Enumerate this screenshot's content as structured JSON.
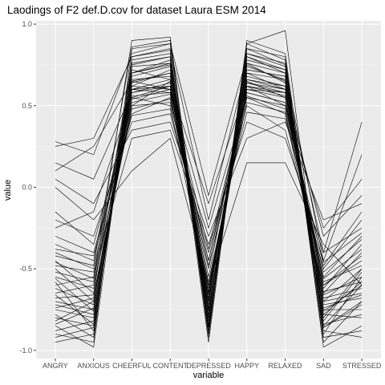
{
  "chart_data": {
    "type": "line",
    "title": "Laodings of F2 def.D.cov for dataset Laura ESM 2014",
    "xlabel": "variable",
    "ylabel": "value",
    "categories": [
      "ANGRY",
      "ANXIOUS",
      "CHEERFUL",
      "CONTENT",
      "DEPRESSED",
      "HAPPY",
      "RELAXED",
      "SAD",
      "STRESSED"
    ],
    "yticks": [
      -1.0,
      -0.5,
      0.0,
      0.5,
      1.0
    ],
    "ytick_labels": [
      "-1.0",
      "-0.5",
      "0.0",
      "0.5",
      "1.0"
    ],
    "ylim": [
      -1.05,
      1.02
    ],
    "grid": true,
    "legend": "none",
    "series": [
      {
        "values": [
          -0.55,
          -0.62,
          0.55,
          0.62,
          -0.7,
          0.65,
          0.55,
          -0.6,
          -0.45
        ]
      },
      {
        "values": [
          -0.8,
          -0.85,
          0.7,
          0.75,
          -0.8,
          0.8,
          0.7,
          -0.9,
          -0.55
        ]
      },
      {
        "values": [
          -0.4,
          -0.5,
          0.6,
          0.58,
          -0.45,
          0.62,
          0.5,
          -0.55,
          -0.3
        ]
      },
      {
        "values": [
          -0.9,
          -0.95,
          0.85,
          0.88,
          -0.9,
          0.85,
          0.75,
          -0.95,
          -0.7
        ]
      },
      {
        "values": [
          0.25,
          0.3,
          0.8,
          0.85,
          -0.2,
          0.75,
          0.65,
          -0.4,
          0.4
        ]
      },
      {
        "values": [
          -0.7,
          -0.75,
          0.65,
          0.7,
          -0.75,
          0.7,
          0.6,
          -0.8,
          -0.5
        ]
      },
      {
        "values": [
          -0.3,
          -0.4,
          0.45,
          0.55,
          -0.5,
          0.6,
          0.55,
          -0.7,
          -0.65
        ]
      },
      {
        "values": [
          -0.85,
          -0.98,
          0.75,
          0.8,
          -0.95,
          0.85,
          0.8,
          -0.98,
          -0.85
        ]
      },
      {
        "values": [
          0.05,
          -0.1,
          0.35,
          0.4,
          -0.3,
          0.3,
          0.4,
          -0.2,
          -0.1
        ]
      },
      {
        "values": [
          -0.6,
          -0.55,
          0.9,
          0.92,
          -0.85,
          0.88,
          0.96,
          -0.85,
          -0.6
        ]
      },
      {
        "values": [
          -0.5,
          -0.7,
          0.5,
          0.65,
          -0.6,
          0.55,
          0.45,
          -0.65,
          -0.4
        ]
      },
      {
        "values": [
          -0.75,
          -0.8,
          0.6,
          0.62,
          -0.7,
          0.72,
          0.68,
          -0.75,
          -0.75
        ]
      },
      {
        "values": [
          -0.2,
          -0.3,
          0.4,
          0.45,
          -0.4,
          0.5,
          0.35,
          -0.5,
          -0.2
        ]
      },
      {
        "values": [
          -0.95,
          -0.9,
          0.7,
          0.78,
          -0.88,
          0.78,
          0.72,
          -0.88,
          -0.92
        ]
      },
      {
        "values": [
          -0.65,
          -0.6,
          0.55,
          0.5,
          -0.65,
          0.58,
          0.52,
          -0.62,
          -0.35
        ]
      },
      {
        "values": [
          0.15,
          0.05,
          0.58,
          0.62,
          -0.1,
          0.62,
          0.58,
          -0.3,
          -0.05
        ]
      },
      {
        "values": [
          -0.45,
          -0.65,
          0.78,
          0.82,
          -0.8,
          0.82,
          0.74,
          -0.78,
          -0.58
        ]
      },
      {
        "values": [
          -0.35,
          -0.45,
          0.62,
          0.6,
          -0.55,
          0.66,
          0.6,
          -0.58,
          -0.48
        ]
      },
      {
        "values": [
          -0.82,
          -0.7,
          0.52,
          0.57,
          -0.62,
          0.6,
          0.58,
          -0.68,
          -0.62
        ]
      },
      {
        "values": [
          -0.58,
          -0.88,
          0.68,
          0.74,
          -0.78,
          0.74,
          0.66,
          -0.82,
          -0.52
        ]
      },
      {
        "values": [
          0.28,
          0.2,
          0.82,
          0.88,
          -0.05,
          0.8,
          0.72,
          -0.45,
          0.2
        ]
      },
      {
        "values": [
          -0.48,
          -0.52,
          0.3,
          0.35,
          -0.35,
          0.4,
          0.3,
          -0.4,
          -0.25
        ]
      },
      {
        "values": [
          -0.72,
          -0.78,
          0.58,
          0.64,
          -0.68,
          0.68,
          0.62,
          -0.72,
          -0.68
        ]
      },
      {
        "values": [
          -0.62,
          -0.72,
          0.72,
          0.66,
          -0.72,
          0.76,
          0.64,
          -0.66,
          -0.55
        ]
      },
      {
        "values": [
          -0.88,
          -0.82,
          0.64,
          0.7,
          -0.82,
          0.7,
          0.66,
          -0.78,
          -0.8
        ]
      },
      {
        "values": [
          -0.15,
          -0.35,
          0.5,
          0.52,
          -0.45,
          0.56,
          0.48,
          -0.52,
          -0.32
        ]
      },
      {
        "values": [
          -0.52,
          -0.58,
          0.66,
          0.68,
          -0.66,
          0.64,
          0.58,
          -0.6,
          -0.42
        ]
      },
      {
        "values": [
          -0.78,
          -0.92,
          0.8,
          0.84,
          -0.92,
          0.88,
          0.78,
          -0.92,
          -0.88
        ]
      },
      {
        "values": [
          0.0,
          -0.2,
          0.1,
          0.3,
          -0.6,
          0.15,
          0.15,
          -0.35,
          -0.6
        ]
      },
      {
        "values": [
          -0.42,
          -0.48,
          0.86,
          0.9,
          -0.86,
          0.9,
          0.82,
          -0.86,
          -0.72
        ]
      },
      {
        "values": [
          -0.68,
          -0.66,
          0.48,
          0.54,
          -0.58,
          0.52,
          0.46,
          -0.56,
          -0.38
        ]
      },
      {
        "values": [
          -0.56,
          -0.76,
          0.62,
          0.72,
          -0.74,
          0.66,
          0.62,
          -0.7,
          -0.5
        ]
      },
      {
        "values": [
          -0.92,
          -0.86,
          0.74,
          0.76,
          -0.84,
          0.76,
          0.7,
          -0.84,
          -0.78
        ]
      },
      {
        "values": [
          -0.25,
          -0.15,
          0.56,
          0.58,
          -0.38,
          0.58,
          0.52,
          -0.48,
          -0.15
        ]
      },
      {
        "values": [
          -0.84,
          -0.74,
          0.6,
          0.66,
          -0.76,
          0.62,
          0.56,
          -0.74,
          -0.66
        ]
      },
      {
        "values": [
          -0.38,
          -0.42,
          0.44,
          0.48,
          -0.48,
          0.46,
          0.42,
          -0.46,
          -0.28
        ]
      },
      {
        "values": [
          -0.66,
          -0.84,
          0.76,
          0.8,
          -0.86,
          0.82,
          0.76,
          -0.86,
          -0.7
        ]
      },
      {
        "values": [
          0.1,
          0.25,
          0.65,
          0.6,
          -0.25,
          0.55,
          0.5,
          -0.25,
          0.05
        ]
      },
      {
        "values": [
          -0.74,
          -0.68,
          0.54,
          0.6,
          -0.64,
          0.64,
          0.6,
          -0.64,
          -0.58
        ]
      },
      {
        "values": [
          -0.46,
          -0.56,
          0.7,
          0.76,
          -0.7,
          0.72,
          0.68,
          -0.76,
          -0.6
        ]
      }
    ]
  }
}
